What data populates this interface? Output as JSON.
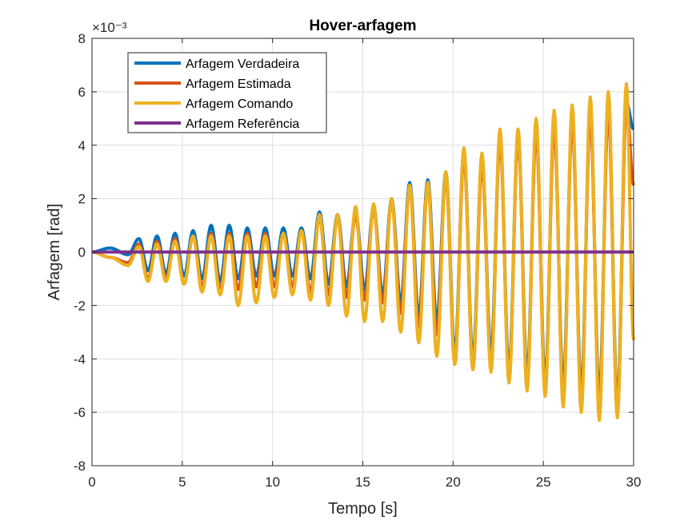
{
  "chart_data": {
    "type": "line",
    "title": "Hover-arfagem",
    "xlabel": "Tempo [s]",
    "ylabel": "Arfagem [rad]",
    "y_exponent_label": "×10⁻³",
    "xlim": [
      0,
      30
    ],
    "ylim": [
      -8,
      8
    ],
    "y_display_scale": 1000,
    "xticks": [
      0,
      5,
      10,
      15,
      20,
      25,
      30
    ],
    "yticks": [
      -8,
      -6,
      -4,
      -2,
      0,
      2,
      4,
      6,
      8
    ],
    "xtick_labels": [
      "0",
      "5",
      "10",
      "15",
      "20",
      "25",
      "30"
    ],
    "ytick_labels": [
      "-8",
      "-6",
      "-4",
      "-2",
      "0",
      "2",
      "4",
      "6",
      "8"
    ],
    "grid": true,
    "legend_position": "top-left",
    "series": [
      {
        "name": "Arfagem Verdadeira",
        "color": "#0072BD",
        "line_width": 4,
        "x": [
          0,
          1,
          2,
          2.6,
          3.1,
          3.6,
          4.1,
          4.6,
          5.1,
          5.6,
          6.1,
          6.6,
          7.1,
          7.6,
          8.1,
          8.6,
          9.1,
          9.6,
          10.1,
          10.6,
          11.1,
          11.6,
          12.1,
          12.6,
          13.1,
          13.6,
          14.1,
          14.6,
          15.1,
          15.6,
          16.1,
          16.6,
          17.1,
          17.6,
          18.1,
          18.6,
          19.1,
          19.6,
          20.1,
          20.6,
          21.1,
          21.6,
          22.1,
          22.6,
          23.1,
          23.6,
          24.1,
          24.6,
          25.1,
          25.6,
          26.1,
          26.6,
          27.1,
          27.6,
          28.1,
          28.6,
          29.1,
          29.6,
          30
        ],
        "y": [
          0,
          0.00015,
          -0.0001,
          0.0005,
          -0.0007,
          0.0006,
          -0.0008,
          0.0007,
          -0.0009,
          0.0008,
          -0.001,
          0.001,
          -0.0011,
          0.001,
          -0.001,
          0.0009,
          -0.0009,
          0.0009,
          -0.0009,
          0.0009,
          -0.0009,
          0.0009,
          -0.001,
          0.0015,
          -0.0012,
          0.0014,
          -0.0013,
          0.0015,
          -0.0014,
          0.0017,
          -0.0016,
          0.002,
          -0.0019,
          0.0026,
          -0.0024,
          0.0027,
          -0.0026,
          0.003,
          -0.0038,
          0.0038,
          -0.004,
          0.0035,
          -0.0038,
          0.0043,
          -0.0044,
          0.0044,
          -0.0046,
          0.0046,
          -0.0048,
          0.0048,
          -0.005,
          0.005,
          -0.0052,
          0.0052,
          -0.0054,
          0.0054,
          -0.0056,
          0.0056,
          0.0046
        ]
      },
      {
        "name": "Arfagem Estimada",
        "color": "#D95319",
        "line_width": 4,
        "x": [
          0,
          1,
          2,
          2.6,
          3.1,
          3.6,
          4.1,
          4.6,
          5.1,
          5.6,
          6.1,
          6.6,
          7.1,
          7.6,
          8.1,
          8.6,
          9.1,
          9.6,
          10.1,
          10.6,
          11.1,
          11.6,
          12.1,
          12.6,
          13.1,
          13.6,
          14.1,
          14.6,
          15.1,
          15.6,
          16.1,
          16.6,
          17.1,
          17.6,
          18.1,
          18.6,
          19.1,
          19.6,
          20.1,
          20.6,
          21.1,
          21.6,
          22.1,
          22.6,
          23.1,
          23.6,
          24.1,
          24.6,
          25.1,
          25.6,
          26.1,
          26.6,
          27.1,
          27.6,
          28.1,
          28.6,
          29.1,
          29.6,
          30
        ],
        "y": [
          0,
          -0.0002,
          -0.0004,
          0.0003,
          -0.001,
          0.0004,
          -0.001,
          0.0005,
          -0.0012,
          0.0006,
          -0.0013,
          0.0007,
          -0.0014,
          0.0007,
          -0.0014,
          0.0007,
          -0.0013,
          0.0007,
          -0.0013,
          0.0007,
          -0.0013,
          0.0008,
          -0.0015,
          0.0013,
          -0.0016,
          0.0013,
          -0.0017,
          0.0014,
          -0.0018,
          0.0016,
          -0.0019,
          0.0019,
          -0.0023,
          0.0024,
          -0.0028,
          0.0025,
          -0.0031,
          0.0028,
          -0.0042,
          0.0036,
          -0.0044,
          0.0033,
          -0.0043,
          0.0042,
          -0.0048,
          0.0043,
          -0.005,
          0.0045,
          -0.0052,
          0.0047,
          -0.0054,
          0.0049,
          -0.0056,
          0.0051,
          -0.0058,
          0.0053,
          -0.006,
          0.0055,
          0.0025
        ]
      },
      {
        "name": "Arfagem Comando",
        "color": "#EDB120",
        "line_width": 4,
        "x": [
          0,
          1,
          2,
          2.6,
          3.1,
          3.6,
          4.1,
          4.6,
          5.1,
          5.6,
          6.1,
          6.6,
          7.1,
          7.6,
          8.1,
          8.6,
          9.1,
          9.6,
          10.1,
          10.6,
          11.1,
          11.6,
          12.1,
          12.6,
          13.1,
          13.6,
          14.1,
          14.6,
          15.1,
          15.6,
          16.1,
          16.6,
          17.1,
          17.6,
          18.1,
          18.6,
          19.1,
          19.6,
          20.1,
          20.6,
          21.1,
          21.6,
          22.1,
          22.6,
          23.1,
          23.6,
          24.1,
          24.6,
          25.1,
          25.6,
          26.1,
          26.6,
          27.1,
          27.6,
          28.1,
          28.6,
          29.1,
          29.6,
          30
        ],
        "y": [
          0,
          -0.0002,
          -0.0005,
          0.0002,
          -0.0011,
          0.0003,
          -0.0011,
          0.0004,
          -0.0012,
          0.0006,
          -0.0015,
          0.0006,
          -0.0016,
          0.0006,
          -0.002,
          0.0006,
          -0.0019,
          0.0006,
          -0.0017,
          0.0007,
          -0.0016,
          0.0008,
          -0.0018,
          0.0014,
          -0.002,
          0.0014,
          -0.0024,
          0.0017,
          -0.0026,
          0.0018,
          -0.0026,
          0.002,
          -0.003,
          0.0025,
          -0.0034,
          0.0026,
          -0.0039,
          0.003,
          -0.0042,
          0.0039,
          -0.0044,
          0.0037,
          -0.0045,
          0.0046,
          -0.0049,
          0.0046,
          -0.0052,
          0.005,
          -0.0054,
          0.0053,
          -0.0058,
          0.0055,
          -0.006,
          0.0058,
          -0.0063,
          0.006,
          -0.0062,
          0.0063,
          -0.0033
        ]
      },
      {
        "name": "Arfagem Referência",
        "color": "#7E2F8E",
        "line_width": 4,
        "x": [
          0,
          30
        ],
        "y": [
          0,
          0
        ]
      }
    ]
  }
}
